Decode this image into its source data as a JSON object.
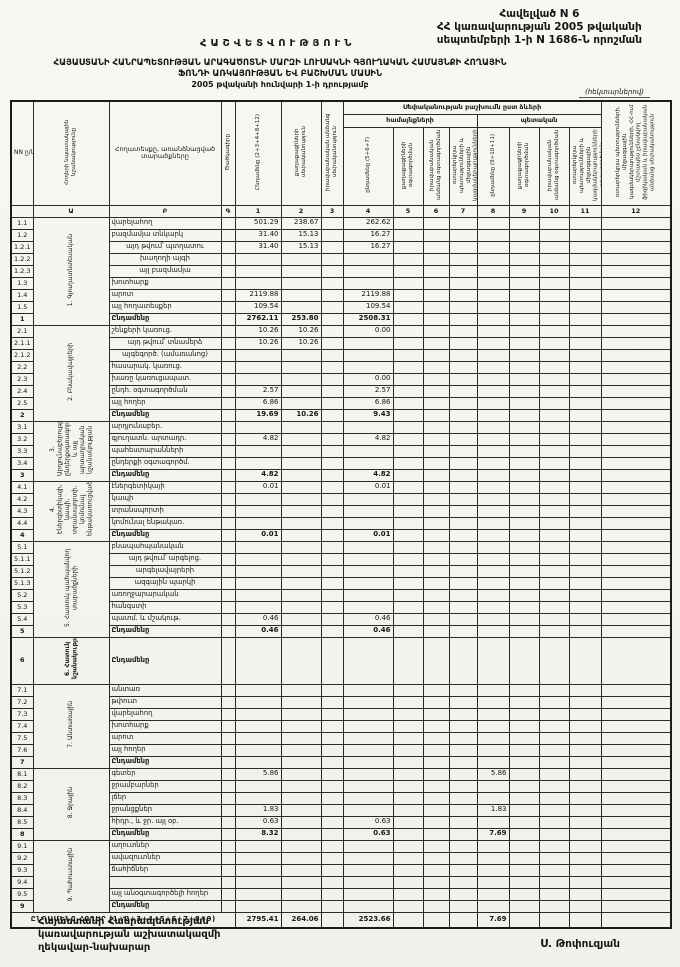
{
  "page": {
    "appendix_lines": [
      "Հավելված N 6",
      "ՀՀ կառավարության 2005 թվականի",
      "սեպտեմբերի 1-ի N 1686-Ն որոշման"
    ],
    "report_word": "ՀԱՇՎԵՏՎՈՒԹՅՈՒՆ",
    "title_line1": "ՀԱՅԱՍՏԱՆԻ ՀԱՆՐԱՊԵՏՈՒԹՅԱՆ ԱՐԱԳԱԾՈՏՆԻ ՄԱՐԶԻ ԼՈՒՍԱԿՆԻ ԳՅՈՒՂԱԿԱՆ ՀԱՄԱՅՆՔԻ ՀՈՂԱՅԻՆ",
    "title_line2": "ՖՈՆԴԻ ԱՌԿԱՅՈՒԹՅԱՆ ԵՎ ԲԱՇԽՄԱՆ ՄԱՍԻՆ",
    "title_line3": "2005 թվականի հունվարի 1-ի դրությամբ",
    "units_note": "(հեկտարներով)"
  },
  "table": {
    "header": {
      "nn": "NN ը/կ",
      "purpose": "Հողերի նպատակային նշանակությունը",
      "landtype": "Հողատեսքը, առանձնացված տարածքները",
      "code": "Ծածկագիրը",
      "ownership_group": "Սեփականության բաշխումն ըստ ձևերի",
      "community_group": "համայնքների",
      "state_group": "պետական",
      "cols": {
        "c1": "Ընդամենը (2+3+4+8+12)",
        "c2": "քաղաքացիների սեփականություն",
        "c3": "իրավաբանական անձանց սեփականություն",
        "c4": "ընդամենը (5+6+7)",
        "c5": "քաղաքացիների օգտագործման",
        "c6": "իրավաբանական անձանց օգտագործման",
        "c7": "օտարերկրյա պետությունների և միջազգային կազմակերպությունների օգտագործման",
        "c8": "ընդամենը (9+10+11)",
        "c9": "քաղաքացիների օգտագործման",
        "c10": "իրավաբանական անձանց օգտագործման",
        "c11": "օտարերկրյա պետությունների և միջազգային կազմակերպությունների օգտագործման",
        "c12": "օտարերկրյա պետությունների, միջազգային կազմակերպությունների, ՀՀ-ում մշտապես չբնակվող ֆիզիկական և իրավաբանական անձանց սեփականություն"
      },
      "index_cells": [
        "",
        "Ա",
        "Բ",
        "Գ",
        "1",
        "2",
        "3",
        "4",
        "5",
        "6",
        "7",
        "8",
        "9",
        "10",
        "11",
        "12"
      ]
    },
    "sections": [
      {
        "purpose": "1. Գյուղատնտեսական",
        "rows": [
          {
            "no": "1.1",
            "label": "վարելահող",
            "v": {
              "c1": "501.29",
              "c2": "238.67",
              "c4": "262.62"
            }
          },
          {
            "no": "1.2",
            "label": "բազմամյա տնկարկ",
            "v": {
              "c1": "31.40",
              "c2": "15.13",
              "c4": "16.27"
            }
          },
          {
            "no": "1.2.1",
            "label": "այդ թվում՝ պտղատու",
            "indent": true,
            "v": {
              "c1": "31.40",
              "c2": "15.13",
              "c4": "16.27"
            }
          },
          {
            "no": "1.2.2",
            "label": "խաղողի այգի",
            "indent": true,
            "v": {}
          },
          {
            "no": "1.2.3",
            "label": "այլ բազմամյա",
            "indent": true,
            "v": {}
          },
          {
            "no": "1.3",
            "label": "խոտհարք",
            "v": {}
          },
          {
            "no": "1.4",
            "label": "արոտ",
            "v": {
              "c1": "2119.88",
              "c4": "2119.88"
            }
          },
          {
            "no": "1.5",
            "label": "այլ հողատեսքեր",
            "v": {
              "c1": "109.54",
              "c4": "109.54"
            }
          },
          {
            "no": "1",
            "label": "Ընդամենը",
            "total": true,
            "v": {
              "c1": "2762.11",
              "c2": "253.80",
              "c4": "2508.31"
            }
          }
        ]
      },
      {
        "purpose": "2. Բնակավայրերի",
        "rows": [
          {
            "no": "2.1",
            "label": "շենքերի կառուց.",
            "v": {
              "c1": "10.26",
              "c2": "10.26",
              "c4": "0.00"
            }
          },
          {
            "no": "2.1.1",
            "label": "այդ թվում՝ տնամերձ",
            "indent": true,
            "v": {
              "c1": "10.26",
              "c2": "10.26"
            }
          },
          {
            "no": "2.1.2",
            "label": "այգեգործ. (ամառանոց)",
            "indent": true,
            "v": {}
          },
          {
            "no": "2.2",
            "label": "հասարակ. կառուց.",
            "v": {}
          },
          {
            "no": "2.3",
            "label": "խառը կառուցապատ.",
            "v": {
              "c4": "0.00"
            }
          },
          {
            "no": "2.4",
            "label": "ընդհ. օգտագործման",
            "v": {
              "c1": "2.57",
              "c4": "2.57"
            }
          },
          {
            "no": "2.5",
            "label": "այլ հողեր",
            "v": {
              "c1": "6.86",
              "c4": "6.86"
            }
          },
          {
            "no": "2",
            "label": "Ընդամենը",
            "total": true,
            "v": {
              "c1": "19.69",
              "c2": "10.26",
              "c4": "9.43"
            }
          }
        ]
      },
      {
        "purpose": "3. Արդյունաբերության, ընդերքօգտագործման և այլ արտադրական նշանակության",
        "rows": [
          {
            "no": "3.1",
            "label": "արդյունաբեր.",
            "v": {}
          },
          {
            "no": "3.2",
            "label": "գյուղատն. արտադր.",
            "v": {
              "c1": "4.82",
              "c4": "4.82"
            }
          },
          {
            "no": "3.3",
            "label": "պահեստարանների",
            "v": {}
          },
          {
            "no": "3.4",
            "label": "ընդերքի օգտագործմ.",
            "v": {}
          },
          {
            "no": "3",
            "label": "Ընդամենը",
            "total": true,
            "v": {
              "c1": "4.82",
              "c4": "4.82"
            }
          }
        ]
      },
      {
        "purpose": "4. Էներգետիկայի, կապի, տրանսպորտի, կոմունալ ենթակառուցվածքների",
        "rows": [
          {
            "no": "4.1",
            "label": "էներգետիկայի",
            "v": {
              "c1": "0.01",
              "c4": "0.01"
            }
          },
          {
            "no": "4.2",
            "label": "կապի",
            "v": {}
          },
          {
            "no": "4.3",
            "label": "տրանսպորտի",
            "v": {}
          },
          {
            "no": "4.4",
            "label": "կոմունալ ենթակառ.",
            "v": {}
          },
          {
            "no": "4",
            "label": "Ընդամենը",
            "total": true,
            "v": {
              "c1": "0.01",
              "c4": "0.01"
            }
          }
        ]
      },
      {
        "purpose": "5. Հատուկ պահպանվող տարածքների",
        "rows": [
          {
            "no": "5.1",
            "label": "բնապահպանական",
            "v": {}
          },
          {
            "no": "5.1.1",
            "label": "այդ թվում՝ արգելոց.",
            "indent": true,
            "v": {}
          },
          {
            "no": "5.1.2",
            "label": "արգելավայրերի",
            "indent": true,
            "v": {}
          },
          {
            "no": "5.1.3",
            "label": "ազգային պարկի",
            "indent": true,
            "v": {}
          },
          {
            "no": "5.2",
            "label": "առողջարարական",
            "v": {}
          },
          {
            "no": "5.3",
            "label": "հանգստի",
            "v": {}
          },
          {
            "no": "5.4",
            "label": "պատմ. և մշակութ.",
            "v": {
              "c1": "0.46",
              "c4": "0.46"
            }
          },
          {
            "no": "5",
            "label": "Ընդամենը",
            "total": true,
            "v": {
              "c1": "0.46",
              "c4": "0.46"
            }
          }
        ]
      },
      {
        "purpose": "6. Հատուկ նշանակության",
        "tall": true,
        "rows": [
          {
            "no": "6",
            "label": "Ընդամենը",
            "total": true,
            "v": {}
          }
        ]
      },
      {
        "purpose": "7. Անտառային",
        "rows": [
          {
            "no": "7.1",
            "label": "անտառ",
            "v": {}
          },
          {
            "no": "7.2",
            "label": "թփուտ",
            "v": {}
          },
          {
            "no": "7.3",
            "label": "վարելահող",
            "v": {}
          },
          {
            "no": "7.4",
            "label": "խոտհարք",
            "v": {}
          },
          {
            "no": "7.5",
            "label": "արոտ",
            "v": {}
          },
          {
            "no": "7.6",
            "label": "այլ հողեր",
            "v": {}
          },
          {
            "no": "7",
            "label": "Ընդամենը",
            "total": true,
            "v": {}
          }
        ]
      },
      {
        "purpose": "8. Ջրային",
        "rows": [
          {
            "no": "8.1",
            "label": "գետեր",
            "v": {
              "c1": "5.86",
              "c8": "5.86"
            }
          },
          {
            "no": "8.2",
            "label": "ջրամբարներ",
            "v": {}
          },
          {
            "no": "8.3",
            "label": "լճեր",
            "v": {}
          },
          {
            "no": "8.4",
            "label": "ջրանցքներ",
            "v": {
              "c1": "1.83",
              "c8": "1.83"
            }
          },
          {
            "no": "8.5",
            "label": "հիդր., և ջր. այլ օբ.",
            "v": {
              "c1": "0.63",
              "c4": "0.63"
            }
          },
          {
            "no": "8",
            "label": "Ընդամենը",
            "total": true,
            "v": {
              "c1": "8.32",
              "c4": "0.63",
              "c8": "7.69"
            }
          }
        ]
      },
      {
        "purpose": "9. Պահուստային",
        "rows": [
          {
            "no": "9.1",
            "label": "աղուտներ",
            "v": {}
          },
          {
            "no": "9.2",
            "label": "ավազուտներ",
            "v": {}
          },
          {
            "no": "9.3",
            "label": "ճահիճներ",
            "v": {}
          },
          {
            "no": "9.4",
            "label": "",
            "v": {}
          },
          {
            "no": "9.5",
            "label": "այլ անօգտագործելի հողեր",
            "v": {}
          },
          {
            "no": "9",
            "label": "Ընդամենը",
            "total": true,
            "v": {}
          }
        ]
      }
    ],
    "grand_total": {
      "label": "ԸՆԴԱՄԵՆԸ ՀՈՂԵՐ (1+2+3+4+5+6+7+8+9)",
      "v": {
        "c1": "2795.41",
        "c2": "264.06",
        "c4": "2523.66",
        "c8": "7.69"
      }
    }
  },
  "footer": {
    "left_lines": [
      "Հայաստանի Հանրապետության",
      "կառավարության աշխատակազմի",
      "ղեկավար-նախարար"
    ],
    "signature": "Ս. Թոփուզյան"
  }
}
